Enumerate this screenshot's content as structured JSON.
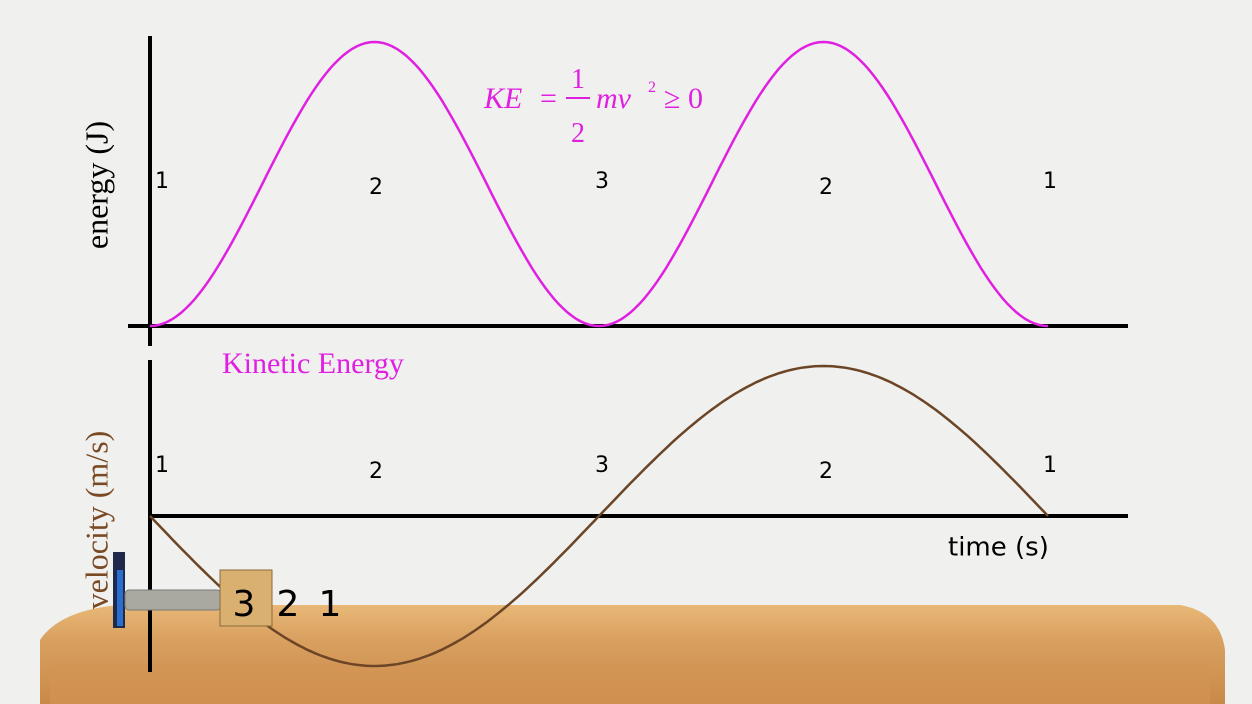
{
  "top_panel": {
    "axis_label": "energy (J)",
    "curve_label": "Kinetic Energy",
    "formula": {
      "lhs": "KE",
      "eq": "=",
      "numerator": "1",
      "denominator": "2",
      "term": "mv",
      "exponent": "2",
      "relation": "≥ 0"
    },
    "position_labels": [
      "1",
      "2",
      "3",
      "2",
      "1"
    ]
  },
  "bottom_panel": {
    "axis_label": "velocity (m/s)",
    "x_axis_label": "time (s)",
    "position_labels": [
      "1",
      "2",
      "3",
      "2",
      "1"
    ]
  },
  "table_labels": [
    "3",
    "2",
    "1"
  ]
}
